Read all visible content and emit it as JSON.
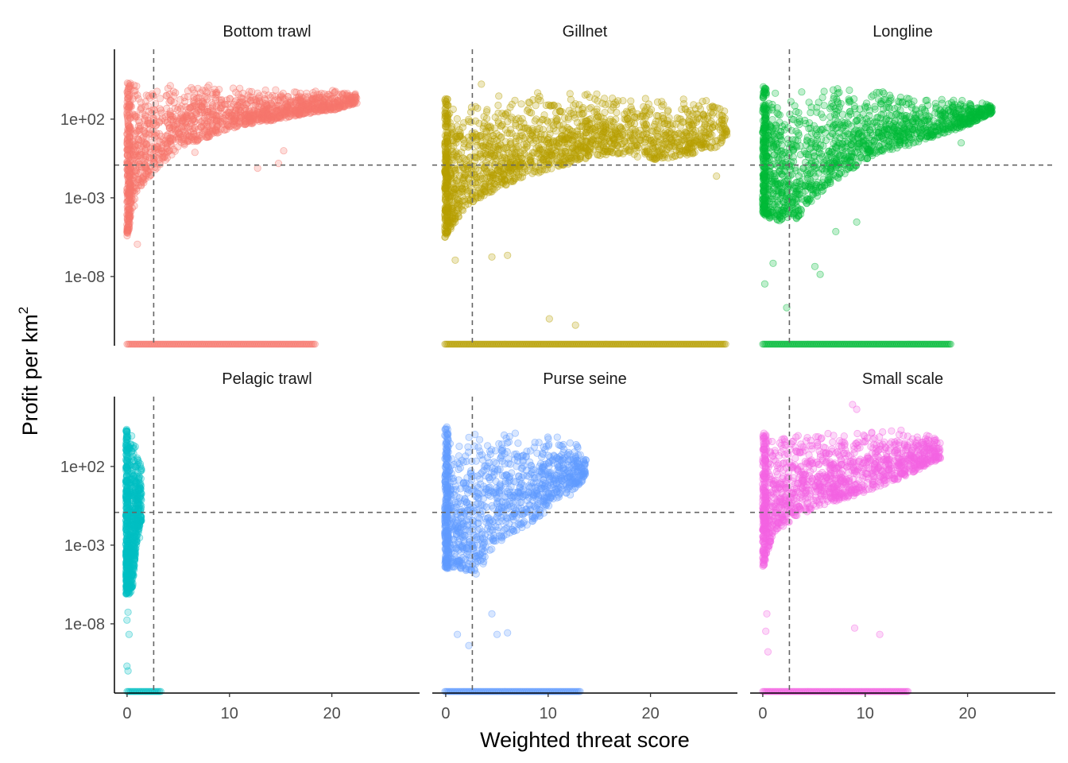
{
  "chart_data": {
    "type": "scatter",
    "layout": "facet-wrap 2x3",
    "xlabel": "Weighted threat score",
    "ylabel": "Profit per km",
    "ylabel_superscript": "2",
    "y_scale": "log10",
    "x_ticks": [
      0,
      10,
      20
    ],
    "y_ticks": [
      {
        "value": 100,
        "label": "1e+02"
      },
      {
        "value": 0.001,
        "label": "1e-03"
      },
      {
        "value": 1e-08,
        "label": "1e-08"
      }
    ],
    "xlim": [
      -1.2,
      28
    ],
    "ylim_log10": [
      -13.3,
      5.4
    ],
    "reference_lines": {
      "vertical_x": 2.6,
      "horizontal_y": 0.06
    },
    "grid": false,
    "legend": "none",
    "point_alpha": 0.25,
    "panels": [
      {
        "name": "Bottom trawl",
        "color": "#F8766D",
        "zero_strip_x": [
          0,
          18
        ],
        "envelope": [
          [
            0,
            -6.6,
            3.3
          ],
          [
            1,
            -3.6,
            3.4
          ],
          [
            3,
            -2.1,
            3.3
          ],
          [
            5,
            -0.8,
            3.4
          ],
          [
            8,
            -0.1,
            3.2
          ],
          [
            11,
            0.6,
            3.0
          ],
          [
            14,
            0.9,
            2.9
          ],
          [
            17,
            1.3,
            2.8
          ],
          [
            20,
            1.6,
            2.8
          ],
          [
            22,
            2.0,
            2.7
          ]
        ],
        "outliers": [
          [
            14.5,
            -1.8
          ],
          [
            15,
            -1.0
          ],
          [
            12.5,
            -2.1
          ],
          [
            6.5,
            -1.1
          ],
          [
            1.0,
            -6.9
          ]
        ]
      },
      {
        "name": "Gillnet",
        "color": "#B79F00",
        "zero_strip_x": [
          0,
          27
        ],
        "envelope": [
          [
            0,
            -6.5,
            2.4
          ],
          [
            2,
            -4.5,
            2.1
          ],
          [
            5,
            -3.4,
            2.5
          ],
          [
            8,
            -2.6,
            2.8
          ],
          [
            11,
            -2.0,
            2.8
          ],
          [
            14,
            -1.4,
            2.6
          ],
          [
            17,
            -1.2,
            2.5
          ],
          [
            20,
            -1.6,
            2.4
          ],
          [
            23,
            -1.3,
            2.3
          ],
          [
            26,
            -0.8,
            2.2
          ],
          [
            27,
            -0.3,
            2.1
          ]
        ],
        "outliers": [
          [
            10,
            -11.6
          ],
          [
            12.5,
            -12.0
          ],
          [
            3.5,
            3.2
          ],
          [
            6,
            -7.6
          ],
          [
            4.5,
            -7.7
          ],
          [
            26,
            -2.6
          ],
          [
            1,
            -7.9
          ]
        ]
      },
      {
        "name": "Longline",
        "color": "#00BA38",
        "zero_strip_x": [
          0,
          18
        ],
        "envelope": [
          [
            0,
            -5.0,
            3.1
          ],
          [
            1,
            -5.4,
            2.7
          ],
          [
            3,
            -5.5,
            2.9
          ],
          [
            5,
            -4.0,
            3.0
          ],
          [
            8,
            -2.4,
            2.9
          ],
          [
            11,
            -1.1,
            2.8
          ],
          [
            14,
            -0.7,
            2.8
          ],
          [
            17,
            0.0,
            2.3
          ],
          [
            20,
            0.7,
            2.2
          ],
          [
            22,
            1.4,
            2.0
          ]
        ],
        "outliers": [
          [
            2.3,
            -10.9
          ],
          [
            0.2,
            -9.4
          ],
          [
            9,
            -5.5
          ],
          [
            7,
            -6.1
          ],
          [
            19,
            -0.5
          ],
          [
            1,
            -8.1
          ],
          [
            5,
            -8.3
          ],
          [
            5.5,
            -8.8
          ]
        ]
      },
      {
        "name": "Pelagic trawl",
        "color": "#00BFC4",
        "zero_strip_x": [
          0,
          3.3
        ],
        "envelope": [
          [
            -0.1,
            -7.1,
            3.4
          ],
          [
            0.5,
            -7.0,
            3.2
          ],
          [
            1.0,
            -3.4,
            2.0
          ],
          [
            1.4,
            -2.5,
            1.6
          ]
        ],
        "outliers": [
          [
            0.0,
            -11.6
          ],
          [
            0.1,
            -11.9
          ],
          [
            0.0,
            -8.7
          ],
          [
            0.1,
            -8.2
          ],
          [
            0.2,
            -9.6
          ],
          [
            1.2,
            -3.5
          ]
        ]
      },
      {
        "name": "Purse seine",
        "color": "#619CFF",
        "zero_strip_x": [
          0,
          13
        ],
        "envelope": [
          [
            0,
            -5.5,
            3.5
          ],
          [
            1,
            -5.4,
            3.5
          ],
          [
            3,
            -5.9,
            3.2
          ],
          [
            5,
            -3.9,
            3.3
          ],
          [
            7,
            -3.0,
            3.3
          ],
          [
            9,
            -2.3,
            3.1
          ],
          [
            11,
            -0.9,
            3.3
          ],
          [
            12.5,
            -0.4,
            2.6
          ],
          [
            13.5,
            0.3,
            1.7
          ]
        ],
        "outliers": [
          [
            1.2,
            -9.6
          ],
          [
            2.3,
            -10.3
          ],
          [
            5,
            -9.6
          ],
          [
            6,
            -9.5
          ],
          [
            12,
            -0.8
          ],
          [
            4.5,
            -8.3
          ]
        ]
      },
      {
        "name": "Small scale",
        "color": "#F564E3",
        "zero_strip_x": [
          0,
          14
        ],
        "envelope": [
          [
            0,
            -5.6,
            3.1
          ],
          [
            1,
            -3.2,
            3.1
          ],
          [
            3,
            -2.3,
            3.2
          ],
          [
            5,
            -1.6,
            3.1
          ],
          [
            7,
            -1.2,
            3.2
          ],
          [
            9,
            -0.8,
            3.5
          ],
          [
            11,
            -0.3,
            3.4
          ],
          [
            13,
            0.2,
            3.4
          ],
          [
            15,
            0.8,
            3.3
          ],
          [
            17,
            1.5,
            3.0
          ]
        ],
        "outliers": [
          [
            8.6,
            4.9
          ],
          [
            9.0,
            4.6
          ],
          [
            11.2,
            -9.6
          ],
          [
            8.8,
            -9.2
          ],
          [
            0.3,
            -9.4
          ],
          [
            0.5,
            -10.7
          ],
          [
            0.4,
            -8.3
          ]
        ]
      }
    ]
  }
}
